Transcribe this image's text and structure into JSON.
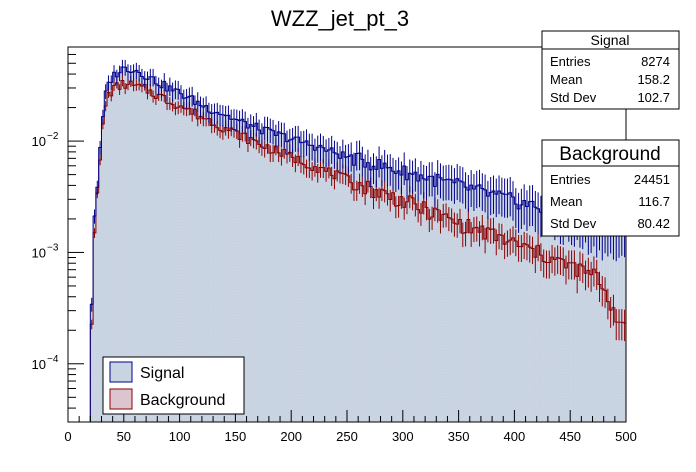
{
  "chart_data": {
    "type": "histogram",
    "title": "WZZ_jet_pt_3",
    "xlabel": "",
    "ylabel": "",
    "xlim": [
      0,
      500
    ],
    "ylim": [
      3e-05,
      0.07
    ],
    "yscale": "log",
    "x_ticks": [
      "0",
      "50",
      "100",
      "150",
      "200",
      "250",
      "300",
      "350",
      "400",
      "450",
      "500"
    ],
    "y_ticks": [
      {
        "value": 0.0001,
        "label": "10",
        "exp": "−4"
      },
      {
        "value": 0.001,
        "label": "10",
        "exp": "−3"
      },
      {
        "value": 0.01,
        "label": "10",
        "exp": "−2"
      }
    ],
    "bin_width": 2.5,
    "series": [
      {
        "name": "Signal",
        "color": "#00008b",
        "fill": "#c9d4e3",
        "anchors": [
          [
            20,
            8e-05
          ],
          [
            22.5,
            0.0016
          ],
          [
            25,
            0.0029
          ],
          [
            27.5,
            0.0055
          ],
          [
            30,
            0.012
          ],
          [
            32.5,
            0.022
          ],
          [
            35,
            0.031
          ],
          [
            40,
            0.038
          ],
          [
            45,
            0.042
          ],
          [
            50,
            0.045
          ],
          [
            55,
            0.045
          ],
          [
            60,
            0.044
          ],
          [
            65,
            0.041
          ],
          [
            70,
            0.039
          ],
          [
            80,
            0.034
          ],
          [
            90,
            0.03
          ],
          [
            100,
            0.027
          ],
          [
            110,
            0.024
          ],
          [
            120,
            0.021
          ],
          [
            130,
            0.019
          ],
          [
            140,
            0.0175
          ],
          [
            150,
            0.0155
          ],
          [
            175,
            0.0125
          ],
          [
            200,
            0.0105
          ],
          [
            225,
            0.0088
          ],
          [
            250,
            0.0072
          ],
          [
            275,
            0.0062
          ],
          [
            300,
            0.0053
          ],
          [
            325,
            0.0046
          ],
          [
            350,
            0.004
          ],
          [
            375,
            0.0034
          ],
          [
            400,
            0.0029
          ],
          [
            425,
            0.0025
          ],
          [
            450,
            0.0021
          ],
          [
            475,
            0.0018
          ],
          [
            497.5,
            0.0015
          ]
        ],
        "stats": {
          "title": "Signal",
          "rows": [
            {
              "label": "Entries",
              "value": "8274"
            },
            {
              "label": "Mean",
              "value": "158.2"
            },
            {
              "label": "Std Dev",
              "value": "102.7"
            }
          ]
        }
      },
      {
        "name": "Background",
        "color": "#8b0000",
        "fill": "#dcc5cf",
        "anchors": [
          [
            20,
            5e-05
          ],
          [
            22.5,
            0.0012
          ],
          [
            25,
            0.0022
          ],
          [
            27.5,
            0.0045
          ],
          [
            30,
            0.01
          ],
          [
            32.5,
            0.018
          ],
          [
            35,
            0.025
          ],
          [
            40,
            0.029
          ],
          [
            45,
            0.031
          ],
          [
            50,
            0.0325
          ],
          [
            55,
            0.032
          ],
          [
            60,
            0.031
          ],
          [
            65,
            0.03
          ],
          [
            70,
            0.029
          ],
          [
            80,
            0.026
          ],
          [
            90,
            0.023
          ],
          [
            100,
            0.021
          ],
          [
            110,
            0.0185
          ],
          [
            120,
            0.0165
          ],
          [
            130,
            0.0148
          ],
          [
            140,
            0.0132
          ],
          [
            150,
            0.0118
          ],
          [
            175,
            0.0091
          ],
          [
            200,
            0.0072
          ],
          [
            225,
            0.0057
          ],
          [
            250,
            0.0045
          ],
          [
            275,
            0.0036
          ],
          [
            300,
            0.0029
          ],
          [
            325,
            0.0023
          ],
          [
            350,
            0.0018
          ],
          [
            375,
            0.0015
          ],
          [
            400,
            0.0012
          ],
          [
            425,
            0.00095
          ],
          [
            450,
            0.00075
          ],
          [
            475,
            0.0006
          ],
          [
            497.5,
            0.0002
          ]
        ],
        "stats": {
          "title": "Background",
          "rows": [
            {
              "label": "Entries",
              "value": "24451"
            },
            {
              "label": "Mean",
              "value": "116.7"
            },
            {
              "label": "Std Dev",
              "value": "80.42"
            }
          ]
        }
      }
    ],
    "legend": {
      "position": "bottom-left",
      "entries": [
        "Signal",
        "Background"
      ]
    }
  }
}
